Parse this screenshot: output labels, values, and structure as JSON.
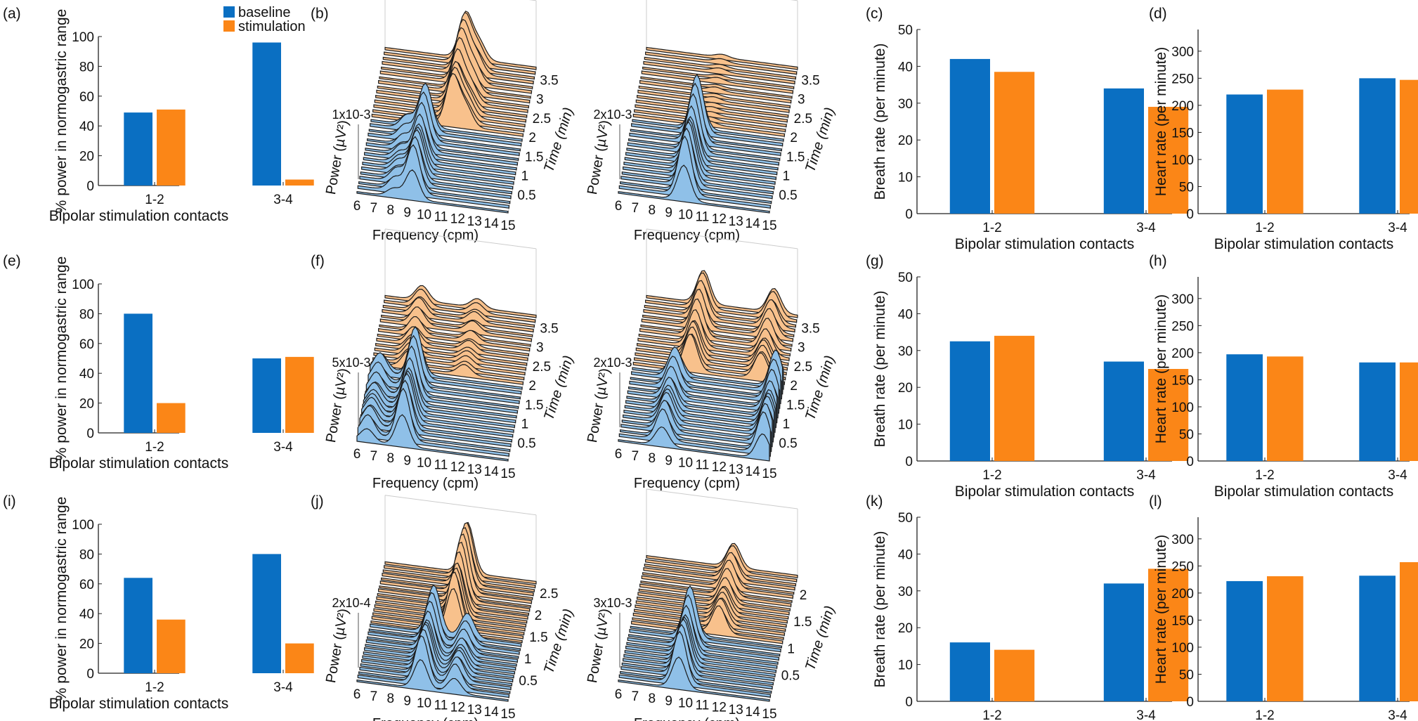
{
  "colors": {
    "baseline": "#0a6fc2",
    "stimulation": "#fb8617",
    "baseline_fill": "#8fc0e8",
    "stimulation_fill": "#f8c18c"
  },
  "legend": {
    "baseline": "baseline",
    "stimulation": "stimulation",
    "placement": "top-right of panel (a)"
  },
  "panel_labels": {
    "a": "(a)",
    "b": "(b)",
    "c": "(c)",
    "d": "(d)",
    "e": "(e)",
    "f": "(f)",
    "g": "(g)",
    "h": "(h)",
    "i": "(i)",
    "j": "(j)",
    "k": "(k)",
    "l": "(l)"
  },
  "axis_text": {
    "contacts_xlabel": "Bipolar stimulation contacts",
    "normogastric_ylabel": "% power in normogastric range",
    "breath_ylabel": "Breath rate (per minute)",
    "heart_ylabel": "Heart rate (per minute)",
    "freq_xlabel": "Frequency (cpm)",
    "power_ylabel": "Power (µV²)",
    "time_label": "Time (min)"
  },
  "chart_data": [
    {
      "id": "a",
      "type": "bar",
      "categories": [
        "1-2",
        "3-4"
      ],
      "series": [
        {
          "name": "baseline",
          "values": [
            49,
            96
          ]
        },
        {
          "name": "stimulation",
          "values": [
            51,
            4
          ]
        }
      ],
      "ylabel": "% power in normogastric range",
      "xlabel": "Bipolar stimulation contacts",
      "ylim": [
        0,
        100
      ],
      "yticks": [
        0,
        20,
        40,
        60,
        80,
        100
      ],
      "grid": false
    },
    {
      "id": "c",
      "type": "bar",
      "categories": [
        "1-2",
        "3-4"
      ],
      "series": [
        {
          "name": "baseline",
          "values": [
            42,
            34
          ]
        },
        {
          "name": "stimulation",
          "values": [
            38.5,
            29
          ]
        }
      ],
      "ylabel": "Breath rate (per minute)",
      "xlabel": "Bipolar stimulation contacts",
      "ylim": [
        0,
        50
      ],
      "yticks": [
        0,
        10,
        20,
        30,
        40,
        50
      ],
      "grid": false
    },
    {
      "id": "d",
      "type": "bar",
      "categories": [
        "1-2",
        "3-4"
      ],
      "series": [
        {
          "name": "baseline",
          "values": [
            220,
            250
          ]
        },
        {
          "name": "stimulation",
          "values": [
            229,
            247
          ]
        }
      ],
      "ylabel": "Heart rate (per minute)",
      "xlabel": "Bipolar stimulation contacts",
      "ylim": [
        0,
        340
      ],
      "yticks": [
        0,
        50,
        100,
        150,
        200,
        250,
        300
      ],
      "grid": false
    },
    {
      "id": "e",
      "type": "bar",
      "categories": [
        "1-2",
        "3-4"
      ],
      "series": [
        {
          "name": "baseline",
          "values": [
            80,
            50
          ]
        },
        {
          "name": "stimulation",
          "values": [
            20,
            51
          ]
        }
      ],
      "ylabel": "% power in normogastric range",
      "xlabel": "Bipolar stimulation contacts",
      "ylim": [
        0,
        100
      ],
      "yticks": [
        0,
        20,
        40,
        60,
        80,
        100
      ],
      "grid": false
    },
    {
      "id": "g",
      "type": "bar",
      "categories": [
        "1-2",
        "3-4"
      ],
      "series": [
        {
          "name": "baseline",
          "values": [
            32.5,
            27
          ]
        },
        {
          "name": "stimulation",
          "values": [
            34,
            25
          ]
        }
      ],
      "ylabel": "Breath rate (per minute)",
      "xlabel": "Bipolar stimulation contacts",
      "ylim": [
        0,
        50
      ],
      "yticks": [
        0,
        10,
        20,
        30,
        40,
        50
      ],
      "grid": false
    },
    {
      "id": "h",
      "type": "bar",
      "categories": [
        "1-2",
        "3-4"
      ],
      "series": [
        {
          "name": "baseline",
          "values": [
            197,
            182
          ]
        },
        {
          "name": "stimulation",
          "values": [
            193,
            182
          ]
        }
      ],
      "ylabel": "Heart rate (per minute)",
      "xlabel": "Bipolar stimulation contacts",
      "ylim": [
        0,
        340
      ],
      "yticks": [
        0,
        50,
        100,
        150,
        200,
        250,
        300
      ],
      "grid": false
    },
    {
      "id": "i",
      "type": "bar",
      "categories": [
        "1-2",
        "3-4"
      ],
      "series": [
        {
          "name": "baseline",
          "values": [
            64,
            80
          ]
        },
        {
          "name": "stimulation",
          "values": [
            36,
            20
          ]
        }
      ],
      "ylabel": "% power in normogastric range",
      "xlabel": "Bipolar stimulation contacts",
      "ylim": [
        0,
        100
      ],
      "yticks": [
        0,
        20,
        40,
        60,
        80,
        100
      ],
      "grid": false
    },
    {
      "id": "k",
      "type": "bar",
      "categories": [
        "1-2",
        "3-4"
      ],
      "series": [
        {
          "name": "baseline",
          "values": [
            16,
            32
          ]
        },
        {
          "name": "stimulation",
          "values": [
            14,
            36
          ]
        }
      ],
      "ylabel": "Breath rate (per minute)",
      "xlabel": "Bipolar stimulation contacts",
      "ylim": [
        0,
        50
      ],
      "yticks": [
        0,
        10,
        20,
        30,
        40,
        50
      ],
      "grid": false
    },
    {
      "id": "l",
      "type": "bar",
      "categories": [
        "1-2",
        "3-4"
      ],
      "series": [
        {
          "name": "baseline",
          "values": [
            222,
            232
          ]
        },
        {
          "name": "stimulation",
          "values": [
            231,
            257
          ]
        }
      ],
      "ylabel": "Heart rate (per minute)",
      "xlabel": "Bipolar stimulation contacts",
      "ylim": [
        0,
        340
      ],
      "yticks": [
        0,
        50,
        100,
        150,
        200,
        250,
        300
      ],
      "grid": false
    },
    {
      "id": "b1",
      "type": "waterfall",
      "xlabel": "Frequency (cpm)",
      "ylabel": "Power (µV²)",
      "zlabel": "Time (min)",
      "power_scale": "1x10-3",
      "freq_ticks": [
        "6",
        "7",
        "8",
        "9",
        "10",
        "11",
        "12",
        "13",
        "14",
        "15"
      ],
      "time_ticks": [
        "0.5",
        "1",
        "1.5",
        "2",
        "2.5",
        "3",
        "3.5"
      ],
      "time_max": 3.75,
      "stim_from": 1.9,
      "base_peaks": [
        {
          "f": 9.3,
          "a": 0.7
        },
        {
          "f": 8.2,
          "a": 0.2
        }
      ],
      "stim_peaks": [
        {
          "f": 10.8,
          "a": 0.75
        },
        {
          "f": 11.6,
          "a": 0.3
        }
      ]
    },
    {
      "id": "b2",
      "type": "waterfall",
      "xlabel": "Frequency (cpm)",
      "ylabel": "Power (µV²)",
      "zlabel": "Time (min)",
      "power_scale": "2x10-3",
      "freq_ticks": [
        "6",
        "7",
        "8",
        "9",
        "10",
        "11",
        "12",
        "13",
        "14",
        "15"
      ],
      "time_ticks": [
        "0.5",
        "1",
        "1.5",
        "2",
        "2.5",
        "3",
        "3.5"
      ],
      "time_max": 3.75,
      "stim_from": 1.9,
      "base_peaks": [
        {
          "f": 9.9,
          "a": 0.85
        }
      ],
      "stim_peaks": [
        {
          "f": 10.5,
          "a": 0.05
        }
      ]
    },
    {
      "id": "f1",
      "type": "waterfall",
      "xlabel": "Frequency (cpm)",
      "ylabel": "Power (µV²)",
      "zlabel": "Time (min)",
      "power_scale": "5x10-3",
      "freq_ticks": [
        "6",
        "7",
        "8",
        "9",
        "10",
        "11",
        "12",
        "13",
        "14",
        "15"
      ],
      "time_ticks": [
        "0.5",
        "1",
        "1.5",
        "2",
        "2.5",
        "3",
        "3.5"
      ],
      "time_max": 3.75,
      "stim_from": 1.9,
      "base_peaks": [
        {
          "f": 8.7,
          "a": 0.75
        },
        {
          "f": 6.6,
          "a": 0.3
        }
      ],
      "stim_peaks": [
        {
          "f": 8.2,
          "a": 0.25
        },
        {
          "f": 11.5,
          "a": 0.15
        }
      ]
    },
    {
      "id": "f2",
      "type": "waterfall",
      "xlabel": "Frequency (cpm)",
      "ylabel": "Power (µV²)",
      "zlabel": "Time (min)",
      "power_scale": "2x10-3",
      "freq_ticks": [
        "6",
        "7",
        "8",
        "9",
        "10",
        "11",
        "12",
        "13",
        "14",
        "15"
      ],
      "time_ticks": [
        "0.5",
        "1",
        "1.5",
        "2",
        "2.5",
        "3",
        "3.5"
      ],
      "time_max": 3.75,
      "stim_from": 1.9,
      "base_peaks": [
        {
          "f": 8.6,
          "a": 0.45
        },
        {
          "f": 14.6,
          "a": 0.6
        }
      ],
      "stim_peaks": [
        {
          "f": 9.4,
          "a": 0.55
        },
        {
          "f": 13.6,
          "a": 0.4
        }
      ]
    },
    {
      "id": "j1",
      "type": "waterfall",
      "xlabel": "Frequency (cpm)",
      "ylabel": "Power (µV²)",
      "zlabel": "Time (min)",
      "power_scale": "2x10-4",
      "freq_ticks": [
        "6",
        "7",
        "8",
        "9",
        "10",
        "11",
        "12",
        "13",
        "14",
        "15"
      ],
      "time_ticks": [
        "0.5",
        "1",
        "1.5",
        "2",
        "2.5"
      ],
      "time_max": 2.7,
      "stim_from": 1.35,
      "base_peaks": [
        {
          "f": 9.8,
          "a": 0.7
        },
        {
          "f": 11.8,
          "a": 0.35
        }
      ],
      "stim_peaks": [
        {
          "f": 10.9,
          "a": 0.85
        }
      ]
    },
    {
      "id": "j2",
      "type": "waterfall",
      "xlabel": "Frequency (cpm)",
      "ylabel": "Power (µV²)",
      "zlabel": "Time (min)",
      "power_scale": "3x10-3",
      "freq_ticks": [
        "6",
        "7",
        "8",
        "9",
        "10",
        "11",
        "12",
        "13",
        "14",
        "15"
      ],
      "time_ticks": [
        "0.5",
        "1",
        "1.5",
        "2"
      ],
      "time_max": 2.3,
      "stim_from": 1.05,
      "base_peaks": [
        {
          "f": 9.6,
          "a": 0.75
        }
      ],
      "stim_peaks": [
        {
          "f": 11.2,
          "a": 0.4
        }
      ]
    }
  ]
}
